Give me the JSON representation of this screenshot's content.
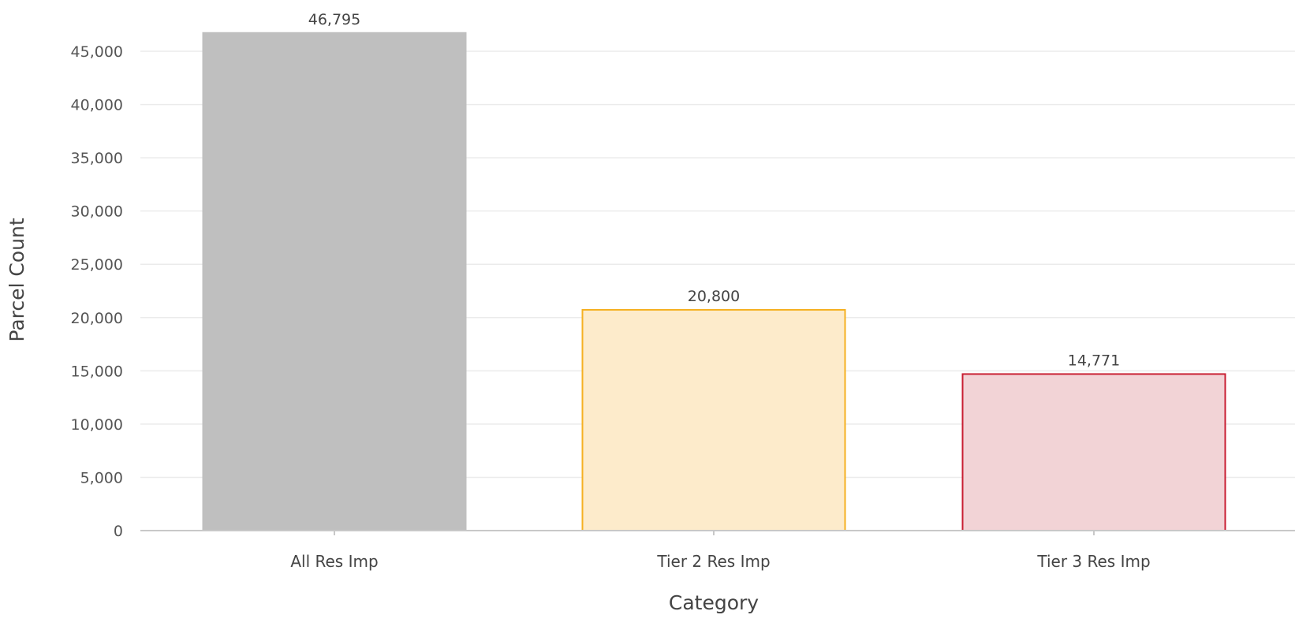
{
  "chart_data": {
    "type": "bar",
    "title": "",
    "xlabel": "Category",
    "ylabel": "Parcel Count",
    "categories": [
      "All Res Imp",
      "Tier 2 Res Imp",
      "Tier 3 Res Imp"
    ],
    "values": [
      46795,
      20800,
      14771
    ],
    "value_labels": [
      "46,795",
      "20,800",
      "14,771"
    ],
    "ylim": [
      0,
      47000
    ],
    "yticks": [
      0,
      5000,
      10000,
      15000,
      20000,
      25000,
      30000,
      35000,
      40000,
      45000
    ],
    "ytick_labels": [
      "0",
      "5,000",
      "10,000",
      "15,000",
      "20,000",
      "25,000",
      "30,000",
      "35,000",
      "40,000",
      "45,000"
    ],
    "bar_fill_colors": [
      "#bfbfbf",
      "#fdebcb",
      "#f2d3d6"
    ],
    "bar_stroke_colors": [
      "#bfbfbf",
      "#f5b022",
      "#c81e32"
    ],
    "grid": true,
    "legend": "none"
  }
}
